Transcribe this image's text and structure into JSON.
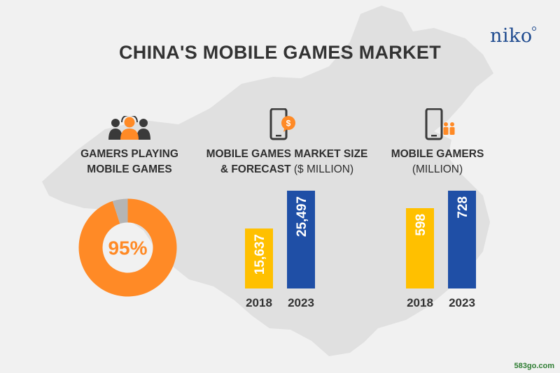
{
  "brand": {
    "logo_text": "niko"
  },
  "title": "CHINA'S MOBILE GAMES MARKET",
  "watermark": "583go.com",
  "colors": {
    "orange": "#ff8a26",
    "gray": "#b5b5b5",
    "yellow": "#ffc000",
    "blue": "#1f4fa6",
    "map": "#e0e0e0"
  },
  "sections": {
    "gamers_playing": {
      "label_line1": "GAMERS PLAYING",
      "label_line2": "MOBILE GAMES",
      "icon": "gamers-group-icon"
    },
    "market_size": {
      "label_line1": "MOBILE GAMES MARKET SIZE",
      "label_line2_bold": "& FORECAST",
      "label_line2_thin": " ($ MILLION)",
      "icon": "phone-dollar-icon"
    },
    "mobile_gamers": {
      "label_line1": "MOBILE GAMERS",
      "label_line2": "(MILLION)",
      "icon": "phone-people-icon"
    }
  },
  "chart_data": [
    {
      "type": "pie",
      "donut": true,
      "slices": [
        {
          "label": "Playing mobile games",
          "value": 95,
          "color": "#ff8a26"
        },
        {
          "label": "Other",
          "value": 5,
          "color": "#b5b5b5"
        }
      ],
      "center_label": "95%"
    },
    {
      "type": "bar",
      "categories": [
        "2018",
        "2023"
      ],
      "values": [
        15637,
        25497
      ],
      "value_labels": [
        "15,637",
        "25,497"
      ],
      "colors": [
        "#ffc000",
        "#1f4fa6"
      ]
    },
    {
      "type": "bar",
      "categories": [
        "2018",
        "2023"
      ],
      "values": [
        598,
        728
      ],
      "value_labels": [
        "598",
        "728"
      ],
      "colors": [
        "#ffc000",
        "#1f4fa6"
      ]
    }
  ]
}
